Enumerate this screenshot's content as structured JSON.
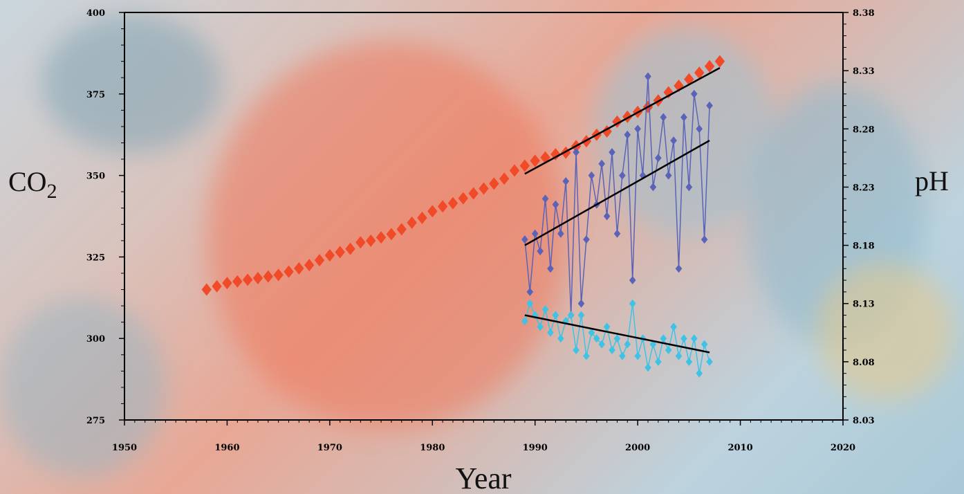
{
  "chart_data": {
    "type": "scatter",
    "xlabel": "Year",
    "ylabel_left": "CO",
    "ylabel_left_subscript": "2",
    "ylabel_right": "pH",
    "xlim": [
      1950,
      2020
    ],
    "ylim_left": [
      275,
      400
    ],
    "ylim_right": [
      8.03,
      8.38
    ],
    "x_ticks": [
      "1950",
      "1960",
      "1970",
      "1980",
      "1990",
      "2000",
      "2010",
      "2020"
    ],
    "y_left_ticks": [
      "275",
      "300",
      "325",
      "350",
      "375",
      "400"
    ],
    "y_right_ticks": [
      "8.03",
      "8.08",
      "8.13",
      "8.18",
      "8.23",
      "8.28",
      "8.33",
      "8.38"
    ],
    "series": [
      {
        "axis": "left",
        "color": "#f04a28",
        "marker": "diamond",
        "trend": {
          "x": [
            1989,
            2008
          ],
          "y": [
            350.5,
            383
          ]
        },
        "x": [
          1958,
          1959,
          1960,
          1961,
          1962,
          1963,
          1964,
          1965,
          1966,
          1967,
          1968,
          1969,
          1970,
          1971,
          1972,
          1973,
          1974,
          1975,
          1976,
          1977,
          1978,
          1979,
          1980,
          1981,
          1982,
          1983,
          1984,
          1985,
          1986,
          1987,
          1988,
          1989,
          1990,
          1991,
          1992,
          1993,
          1994,
          1995,
          1996,
          1997,
          1998,
          1999,
          2000,
          2001,
          2002,
          2003,
          2004,
          2005,
          2006,
          2007,
          2008
        ],
        "y": [
          315,
          316,
          317,
          317.5,
          318,
          318.5,
          319,
          319.5,
          320.5,
          321.5,
          322.5,
          324,
          325.5,
          326.5,
          327.5,
          329.5,
          330,
          331,
          332,
          333.5,
          335.5,
          337,
          339,
          340.5,
          341.5,
          343,
          344.5,
          346,
          347.5,
          349,
          351.5,
          353,
          354.5,
          355.5,
          356.5,
          357,
          359,
          360.5,
          362.5,
          363.5,
          366.5,
          368,
          369.5,
          371,
          373,
          375.5,
          377.5,
          379.5,
          381.5,
          383.5,
          385
        ]
      },
      {
        "axis": "right",
        "color": "#5a63b8",
        "marker": "diamond",
        "trend": {
          "x": [
            1989,
            2007
          ],
          "y": [
            8.18,
            8.27
          ]
        },
        "x": [
          1989,
          1989.5,
          1990,
          1990.5,
          1991,
          1991.5,
          1992,
          1992.5,
          1993,
          1993.5,
          1994,
          1994.5,
          1995,
          1995.5,
          1996,
          1996.5,
          1997,
          1997.5,
          1998,
          1998.5,
          1999,
          1999.5,
          2000,
          2000.5,
          2001,
          2001.5,
          2002,
          2002.5,
          2003,
          2003.5,
          2004,
          2004.5,
          2005,
          2005.5,
          2006,
          2006.5,
          2007
        ],
        "y": [
          8.185,
          8.14,
          8.19,
          8.175,
          8.22,
          8.16,
          8.215,
          8.19,
          8.235,
          8.12,
          8.26,
          8.13,
          8.185,
          8.24,
          8.215,
          8.25,
          8.205,
          8.26,
          8.19,
          8.24,
          8.275,
          8.15,
          8.28,
          8.24,
          8.325,
          8.23,
          8.255,
          8.29,
          8.24,
          8.27,
          8.16,
          8.29,
          8.23,
          8.31,
          8.28,
          8.185,
          8.3
        ]
      },
      {
        "axis": "right",
        "color": "#3ec3e6",
        "marker": "diamond",
        "trend": {
          "x": [
            1989,
            2007
          ],
          "y": [
            8.12,
            8.088
          ]
        },
        "x": [
          1989,
          1989.5,
          1990,
          1990.5,
          1991,
          1991.5,
          1992,
          1992.5,
          1993,
          1993.5,
          1994,
          1994.5,
          1995,
          1995.5,
          1996,
          1996.5,
          1997,
          1997.5,
          1998,
          1998.5,
          1999,
          1999.5,
          2000,
          2000.5,
          2001,
          2001.5,
          2002,
          2002.5,
          2003,
          2003.5,
          2004,
          2004.5,
          2005,
          2005.5,
          2006,
          2006.5,
          2007
        ],
        "y": [
          8.115,
          8.13,
          8.12,
          8.11,
          8.125,
          8.105,
          8.12,
          8.1,
          8.115,
          8.12,
          8.09,
          8.12,
          8.085,
          8.105,
          8.1,
          8.095,
          8.11,
          8.09,
          8.1,
          8.085,
          8.095,
          8.13,
          8.085,
          8.1,
          8.075,
          8.095,
          8.08,
          8.1,
          8.09,
          8.11,
          8.085,
          8.1,
          8.08,
          8.1,
          8.07,
          8.095,
          8.08
        ]
      }
    ]
  }
}
